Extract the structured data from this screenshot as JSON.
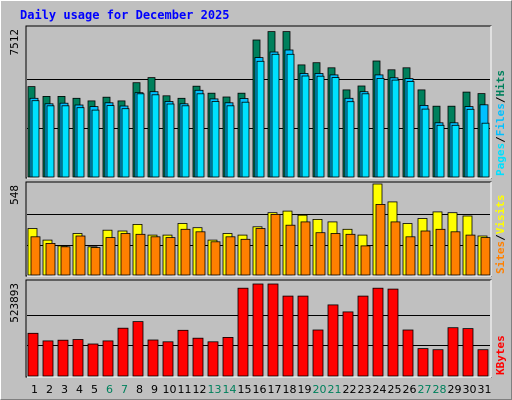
{
  "title": "Daily usage for December 2025",
  "colors": {
    "background": "#c0c0c0",
    "plot_bg": "#c0c0c0",
    "hits": "#00805c",
    "files": "#00c0ff",
    "pages": "#00e0ff",
    "visits": "#ffff00",
    "sites": "#ff8000",
    "kbytes": "#ff0000",
    "weekday_label": "#000000",
    "weekend_label": "#00805c",
    "title": "#0000ff"
  },
  "chart_data": [
    {
      "type": "bar",
      "name": "hits-files-pages",
      "ytick_label": "7512",
      "ylim": [
        0,
        7512
      ],
      "right_labels": [
        "Hits",
        "Files",
        "Pages"
      ],
      "categories": [
        "1",
        "2",
        "3",
        "4",
        "5",
        "6",
        "7",
        "8",
        "9",
        "10",
        "11",
        "12",
        "13",
        "14",
        "15",
        "16",
        "17",
        "18",
        "19",
        "20",
        "21",
        "22",
        "23",
        "24",
        "25",
        "26",
        "27",
        "28",
        "29",
        "30",
        "31"
      ],
      "series": [
        {
          "name": "Hits",
          "values": [
            4620,
            4120,
            4120,
            4020,
            3890,
            4080,
            3890,
            4820,
            5080,
            4150,
            4020,
            4640,
            4280,
            4090,
            4280,
            7000,
            7430,
            7430,
            5730,
            5840,
            5580,
            4450,
            4650,
            5930,
            5480,
            5580,
            4450,
            3620,
            3620,
            4340,
            4260
          ]
        },
        {
          "name": "Files",
          "values": [
            4020,
            3740,
            3770,
            3680,
            3600,
            3790,
            3630,
            4310,
            4360,
            3860,
            3740,
            4430,
            3990,
            3790,
            4010,
            6100,
            6390,
            6490,
            5290,
            5290,
            5220,
            4020,
            4360,
            5220,
            5070,
            5030,
            3660,
            2770,
            2770,
            3600,
            3690
          ]
        },
        {
          "name": "Pages",
          "values": [
            3900,
            3640,
            3640,
            3540,
            3420,
            3650,
            3490,
            4250,
            4200,
            3730,
            3640,
            4250,
            3860,
            3640,
            3820,
            5910,
            6270,
            6270,
            5160,
            5150,
            5080,
            3850,
            4250,
            5040,
            4950,
            4880,
            3470,
            2640,
            2640,
            3460,
            2750
          ]
        }
      ]
    },
    {
      "type": "bar",
      "name": "visits-sites",
      "ytick_label": "548",
      "ylim": [
        0,
        548
      ],
      "right_labels": [
        "Visits",
        "Sites"
      ],
      "categories": [
        "1",
        "2",
        "3",
        "4",
        "5",
        "6",
        "7",
        "8",
        "9",
        "10",
        "11",
        "12",
        "13",
        "14",
        "15",
        "16",
        "17",
        "18",
        "19",
        "20",
        "21",
        "22",
        "23",
        "24",
        "25",
        "26",
        "27",
        "28",
        "29",
        "30",
        "31"
      ],
      "series": [
        {
          "name": "Visits",
          "values": [
            280,
            210,
            175,
            250,
            170,
            270,
            265,
            305,
            240,
            240,
            310,
            285,
            210,
            250,
            240,
            290,
            375,
            385,
            360,
            335,
            320,
            275,
            240,
            548,
            440,
            310,
            340,
            380,
            375,
            355,
            235
          ]
        },
        {
          "name": "Sites",
          "values": [
            230,
            190,
            170,
            235,
            165,
            225,
            250,
            245,
            230,
            225,
            275,
            260,
            200,
            230,
            215,
            280,
            365,
            300,
            320,
            255,
            250,
            245,
            175,
            425,
            320,
            230,
            265,
            275,
            260,
            240,
            225
          ]
        }
      ]
    },
    {
      "type": "bar",
      "name": "kbytes",
      "ytick_label": "523893",
      "ylim": [
        0,
        523893
      ],
      "right_labels": [
        "KBytes"
      ],
      "categories": [
        "1",
        "2",
        "3",
        "4",
        "5",
        "6",
        "7",
        "8",
        "9",
        "10",
        "11",
        "12",
        "13",
        "14",
        "15",
        "16",
        "17",
        "18",
        "19",
        "20",
        "21",
        "22",
        "23",
        "24",
        "25",
        "26",
        "27",
        "28",
        "29",
        "30",
        "31"
      ],
      "series": [
        {
          "name": "KBytes",
          "values": [
            243000,
            200000,
            204000,
            208000,
            182000,
            200000,
            272000,
            310000,
            205000,
            195000,
            260000,
            215000,
            195000,
            220000,
            500000,
            523893,
            523893,
            455000,
            455000,
            262000,
            405000,
            365000,
            455000,
            500000,
            495000,
            262000,
            156000,
            150000,
            275000,
            270000,
            150000
          ]
        }
      ]
    }
  ],
  "x_labels": {
    "weekends": [
      "6",
      "7",
      "13",
      "14",
      "20",
      "21",
      "27",
      "28"
    ]
  }
}
